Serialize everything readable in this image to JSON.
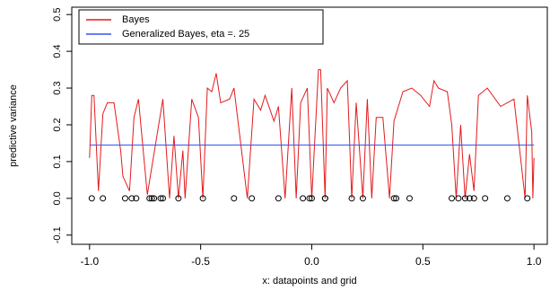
{
  "chart_data": {
    "type": "line",
    "xlabel": "x: datapoints and grid",
    "ylabel": "predictive variance",
    "xlim": [
      -1.08,
      1.06
    ],
    "ylim": [
      -0.125,
      0.52
    ],
    "xticks": [
      {
        "value": -1,
        "label": "-1.0"
      },
      -0.5,
      {
        "value": 0,
        "label": "0.0"
      },
      0.5,
      {
        "value": 1,
        "label": "1.0"
      }
    ],
    "yticks": [
      -0.1,
      {
        "value": 0,
        "label": "0.0"
      },
      0.1,
      0.2,
      0.3,
      0.4,
      0.5
    ],
    "legend": "top-left",
    "series": [
      {
        "name": "Bayes",
        "color": "#e41a1c",
        "x": [
          -1.0,
          -0.99,
          -0.98,
          -0.96,
          -0.94,
          -0.92,
          -0.89,
          -0.86,
          -0.85,
          -0.82,
          -0.8,
          -0.78,
          -0.74,
          -0.67,
          -0.64,
          -0.62,
          -0.6,
          -0.58,
          -0.57,
          -0.54,
          -0.51,
          -0.49,
          -0.47,
          -0.45,
          -0.43,
          -0.41,
          -0.37,
          -0.35,
          -0.29,
          -0.26,
          -0.23,
          -0.21,
          -0.17,
          -0.15,
          -0.12,
          -0.09,
          -0.07,
          -0.05,
          -0.02,
          0.0,
          0.03,
          0.04,
          0.06,
          0.07,
          0.1,
          0.13,
          0.16,
          0.18,
          0.2,
          0.23,
          0.25,
          0.27,
          0.29,
          0.32,
          0.35,
          0.37,
          0.41,
          0.45,
          0.49,
          0.53,
          0.55,
          0.57,
          0.61,
          0.63,
          0.65,
          0.67,
          0.69,
          0.71,
          0.73,
          0.75,
          0.79,
          0.85,
          0.91,
          0.96,
          0.97,
          0.99,
          0.995,
          1.0
        ],
        "values": [
          0.11,
          0.28,
          0.28,
          0.02,
          0.23,
          0.26,
          0.26,
          0.13,
          0.06,
          0.02,
          0.22,
          0.27,
          0.01,
          0.27,
          0.0,
          0.17,
          0.0,
          0.13,
          0.0,
          0.27,
          0.22,
          0.0,
          0.3,
          0.29,
          0.34,
          0.26,
          0.27,
          0.3,
          0.0,
          0.27,
          0.24,
          0.28,
          0.21,
          0.25,
          0.0,
          0.3,
          0.0,
          0.26,
          0.3,
          0.0,
          0.35,
          0.35,
          0.0,
          0.3,
          0.26,
          0.3,
          0.32,
          0.0,
          0.26,
          0.0,
          0.27,
          0.0,
          0.22,
          0.22,
          0.0,
          0.21,
          0.29,
          0.3,
          0.28,
          0.25,
          0.32,
          0.3,
          0.29,
          0.2,
          0.0,
          0.2,
          0.0,
          0.12,
          0.02,
          0.28,
          0.3,
          0.25,
          0.27,
          0.0,
          0.28,
          0.18,
          0.0,
          0.11
        ]
      },
      {
        "name": "Generalized Bayes, eta =. 25",
        "color": "#3355ee",
        "x": [
          -1,
          1
        ],
        "values": [
          0.145,
          0.145
        ]
      }
    ],
    "points": {
      "color": "#000000",
      "x": [
        -0.99,
        -0.94,
        -0.84,
        -0.81,
        -0.79,
        -0.73,
        -0.72,
        -0.71,
        -0.68,
        -0.67,
        -0.6,
        -0.49,
        -0.35,
        -0.27,
        -0.15,
        -0.04,
        -0.01,
        0.0,
        0.06,
        0.06,
        0.18,
        0.23,
        0.37,
        0.38,
        0.44,
        0.63,
        0.66,
        0.69,
        0.71,
        0.73,
        0.78,
        0.88,
        0.97
      ],
      "y": [
        0,
        0,
        0,
        0,
        0,
        0,
        0,
        0,
        0,
        0,
        0,
        0,
        0,
        0,
        0,
        0,
        0,
        0,
        0,
        0,
        0,
        0,
        0,
        0,
        0,
        0,
        0,
        0,
        0,
        0,
        0,
        0,
        0
      ]
    }
  }
}
